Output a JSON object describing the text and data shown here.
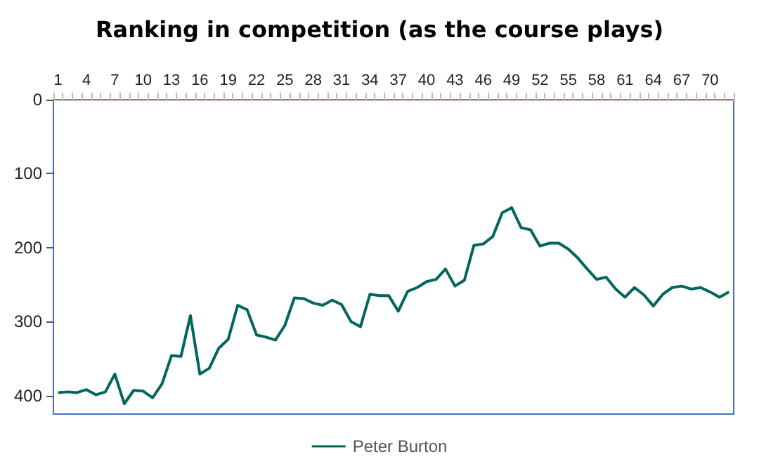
{
  "chart_data": {
    "type": "line",
    "title": "Ranking in competition (as the course plays)",
    "categories": [
      "1",
      null,
      null,
      "4",
      null,
      null,
      "7",
      null,
      null,
      "10",
      null,
      null,
      "13",
      null,
      null,
      "16",
      null,
      null,
      "19",
      null,
      null,
      "22",
      null,
      null,
      "25",
      null,
      null,
      "28",
      null,
      null,
      "31",
      null,
      null,
      "34",
      null,
      null,
      "37",
      null,
      null,
      "40",
      null,
      null,
      "43",
      null,
      null,
      "46",
      null,
      null,
      "49",
      null,
      null,
      "52",
      null,
      null,
      "55",
      null,
      null,
      "58",
      null,
      null,
      "61",
      null,
      null,
      "64",
      null,
      null,
      "67",
      null,
      null,
      "70",
      null,
      null
    ],
    "series": [
      {
        "name": "Peter Burton",
        "color": "#00665e",
        "values": [
          396,
          395,
          396,
          392,
          399,
          395,
          371,
          411,
          393,
          394,
          403,
          384,
          346,
          347,
          292,
          371,
          363,
          336,
          324,
          278,
          284,
          318,
          321,
          325,
          305,
          268,
          269,
          275,
          278,
          271,
          277,
          300,
          307,
          263,
          265,
          265,
          286,
          259,
          254,
          246,
          243,
          229,
          252,
          244,
          197,
          195,
          185,
          153,
          146,
          173,
          176,
          198,
          194,
          194,
          202,
          214,
          229,
          243,
          240,
          256,
          267,
          254,
          264,
          279,
          263,
          254,
          252,
          256,
          254,
          260,
          267,
          260
        ]
      }
    ],
    "ylim": [
      425,
      0
    ],
    "yticks": [
      0,
      100,
      200,
      300,
      400
    ],
    "grid": false,
    "legend": "bottom",
    "marker": "none",
    "line_style": "solid"
  }
}
